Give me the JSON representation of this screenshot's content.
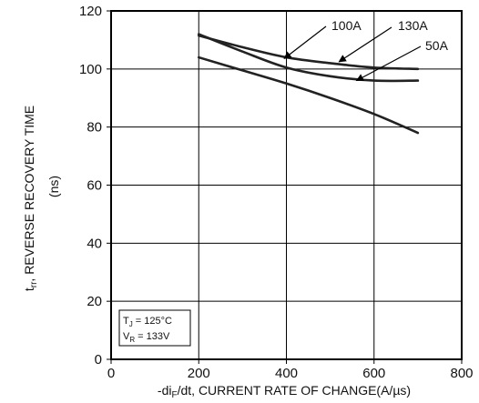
{
  "chart_data": {
    "type": "line",
    "ylabel_line1": {
      "t": "t",
      "sub": "rr",
      "rest": ", REVERSE RECOVERY TIME"
    },
    "ylabel_line2": "(ns)",
    "xlabel": {
      "pre": "-di",
      "sub": "F",
      "rest": "/dt, CURRENT RATE OF CHANGE(A/µs)"
    },
    "xlim": [
      0,
      800
    ],
    "ylim": [
      0,
      120
    ],
    "x_ticks": [
      0,
      200,
      400,
      600,
      800
    ],
    "y_ticks": [
      0,
      20,
      40,
      60,
      80,
      100,
      120
    ],
    "x_tick_labels": [
      "0",
      "200",
      "400",
      "600",
      "800"
    ],
    "y_tick_labels": [
      "0",
      "20",
      "40",
      "60",
      "80",
      "100",
      "120"
    ],
    "grid": true,
    "series": [
      {
        "name": "100A",
        "x": [
          200,
          300,
          400,
          500,
          600,
          700
        ],
        "y": [
          111.5,
          107.5,
          104,
          102,
          100.5,
          100
        ]
      },
      {
        "name": "130A",
        "x": [
          200,
          300,
          400,
          500,
          600,
          700
        ],
        "y": [
          112,
          106,
          100.5,
          97.5,
          96,
          96
        ]
      },
      {
        "name": "50A",
        "x": [
          200,
          300,
          400,
          500,
          600,
          700
        ],
        "y": [
          104,
          99.5,
          95,
          90,
          84.5,
          78
        ]
      }
    ],
    "conditions": [
      {
        "pre": "T",
        "sub": "J",
        "rest": " = 125°C"
      },
      {
        "pre": "V",
        "sub": "R",
        "rest": " = 133V"
      }
    ]
  }
}
